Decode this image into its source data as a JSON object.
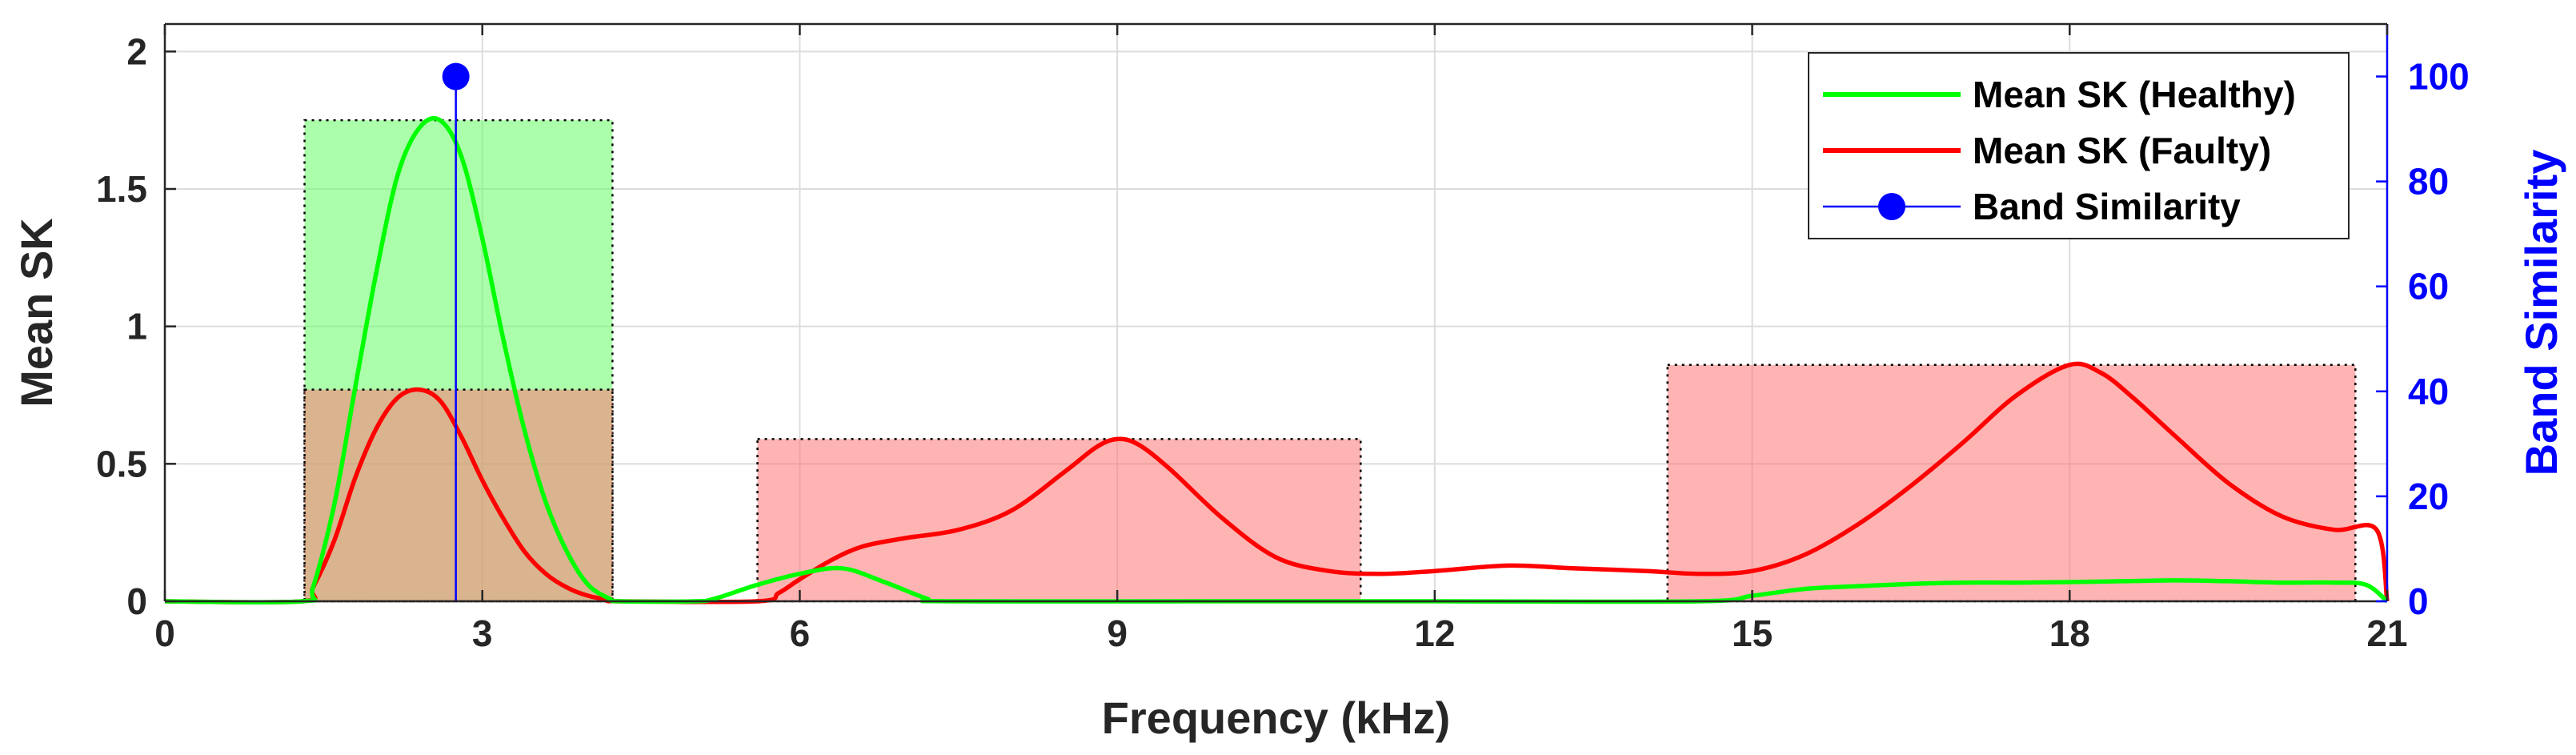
{
  "chart_data": {
    "type": "line",
    "xlabel": "Frequency (kHz)",
    "ylabel": "Mean SK",
    "y2label": "Band Similarity",
    "xlim": [
      0,
      21
    ],
    "ylim": [
      0,
      2.1
    ],
    "y2lim": [
      0,
      110
    ],
    "xticks": [
      "0",
      "3",
      "6",
      "9",
      "12",
      "15",
      "18",
      "21"
    ],
    "xtick_values": [
      0,
      3,
      6,
      9,
      12,
      15,
      18,
      21
    ],
    "yticks": [
      "0",
      "0.5",
      "1",
      "1.5",
      "2"
    ],
    "ytick_values": [
      0,
      0.5,
      1,
      1.5,
      2
    ],
    "y2ticks": [
      "0",
      "20",
      "40",
      "60",
      "80",
      "100"
    ],
    "y2tick_values": [
      0,
      20,
      40,
      60,
      80,
      100
    ],
    "grid": true,
    "legend_position": "top-right",
    "series": [
      {
        "name": "Mean SK (Healthy)",
        "color": "#00ff00",
        "x": [
          0,
          1.3,
          1.4,
          1.6,
          1.8,
          2.0,
          2.2,
          2.4,
          2.6,
          2.8,
          3.0,
          3.2,
          3.4,
          3.6,
          3.8,
          4.0,
          4.2,
          4.3,
          5.0,
          5.2,
          5.6,
          6.0,
          6.4,
          6.8,
          7.2,
          7.4,
          10.0,
          12.0,
          14.5,
          15.0,
          15.5,
          16.0,
          16.5,
          17.0,
          17.5,
          18.0,
          18.5,
          19.0,
          19.5,
          20.0,
          20.5,
          20.8,
          21.0
        ],
        "y": [
          0,
          0,
          0.05,
          0.35,
          0.78,
          1.2,
          1.55,
          1.72,
          1.75,
          1.62,
          1.32,
          0.95,
          0.62,
          0.36,
          0.18,
          0.06,
          0.01,
          0,
          0,
          0.01,
          0.06,
          0.1,
          0.12,
          0.07,
          0.01,
          0,
          0,
          0,
          0,
          0.02,
          0.045,
          0.055,
          0.063,
          0.068,
          0.068,
          0.07,
          0.073,
          0.076,
          0.073,
          0.068,
          0.068,
          0.06,
          0
        ]
      },
      {
        "name": "Mean SK (Faulty)",
        "color": "#ff0000",
        "x": [
          0,
          1.3,
          1.4,
          1.6,
          1.8,
          2.0,
          2.2,
          2.4,
          2.6,
          2.8,
          3.0,
          3.2,
          3.4,
          3.6,
          3.8,
          4.0,
          4.2,
          4.3,
          5.6,
          5.8,
          6.0,
          6.3,
          6.6,
          7.0,
          7.5,
          8.0,
          8.5,
          8.8,
          9.0,
          9.2,
          9.5,
          10.0,
          10.5,
          11.0,
          11.5,
          12.0,
          12.7,
          13.3,
          14.0,
          14.5,
          15.0,
          15.5,
          16.0,
          16.5,
          17.0,
          17.5,
          18.0,
          18.3,
          18.6,
          19.0,
          19.5,
          20.0,
          20.5,
          20.9,
          21.0
        ],
        "y": [
          0,
          0,
          0.05,
          0.22,
          0.45,
          0.63,
          0.74,
          0.77,
          0.73,
          0.6,
          0.44,
          0.3,
          0.18,
          0.1,
          0.05,
          0.02,
          0.005,
          0,
          0,
          0.03,
          0.08,
          0.15,
          0.2,
          0.23,
          0.26,
          0.33,
          0.47,
          0.56,
          0.59,
          0.57,
          0.48,
          0.3,
          0.16,
          0.11,
          0.1,
          0.11,
          0.13,
          0.12,
          0.11,
          0.1,
          0.11,
          0.17,
          0.28,
          0.42,
          0.58,
          0.75,
          0.86,
          0.83,
          0.74,
          0.6,
          0.43,
          0.31,
          0.26,
          0.26,
          0.0
        ]
      },
      {
        "name": "Band Similarity",
        "color": "#0000ff",
        "axis": "right",
        "type": "stem",
        "x": [
          2.75
        ],
        "y": [
          100
        ]
      }
    ],
    "bands": [
      {
        "x0": 1.32,
        "x1": 4.23,
        "top": 1.75,
        "fill": "#66ff66",
        "opacity": 0.55
      },
      {
        "x0": 1.32,
        "x1": 4.23,
        "top": 0.77,
        "fill": "#ff7777",
        "opacity": 0.55
      },
      {
        "x0": 5.6,
        "x1": 11.3,
        "top": 0.59,
        "fill": "#ff7777",
        "opacity": 0.55
      },
      {
        "x0": 14.2,
        "x1": 20.7,
        "top": 0.86,
        "fill": "#ff7777",
        "opacity": 0.55
      }
    ]
  }
}
